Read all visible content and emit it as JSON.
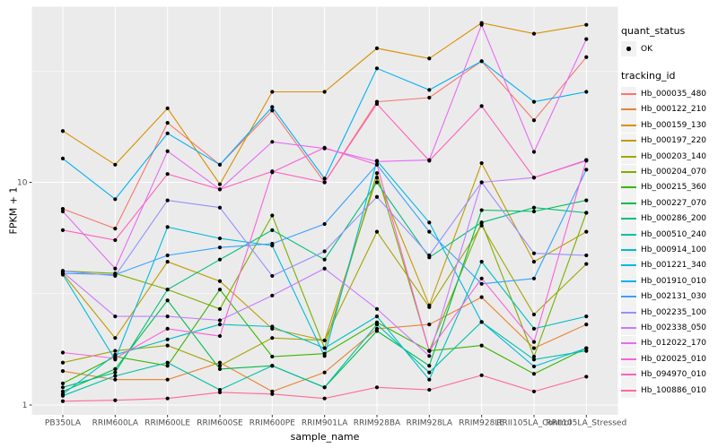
{
  "colors": {
    "figure_bg": "#FFFFFF",
    "panel_bg": "#EBEBEB",
    "grid": "#FFFFFF",
    "tick_mark": "#333333",
    "axis_text": "#4D4D4D",
    "point": "#000000",
    "legend_key_bg": "#F2F2F2"
  },
  "chart_data": {
    "type": "line",
    "title": "",
    "xlabel": "sample_name",
    "ylabel": "FPKM + 1",
    "yscale": "log10",
    "ylim": [
      0.9,
      61
    ],
    "grid": true,
    "legend_position": "right",
    "yticks": [
      {
        "label": "10",
        "value": 10
      },
      {
        "label": "1",
        "value": 1
      }
    ],
    "yminor": [
      31.623,
      3.1623
    ],
    "categories": [
      "PB350LA",
      "RRIM600LA",
      "RRIM600LE",
      "RRIM600SE",
      "RRIM600PE",
      "RRIM901LA",
      "RRIM928BA",
      "RRIM928LA",
      "RRIM928LE",
      "RRII105LA_Control",
      "RRII105LA_Stressed"
    ],
    "series": [
      {
        "name": "Hb_000035_480",
        "color": "#F8766D",
        "values": [
          7.6,
          6.2,
          18.5,
          12.0,
          21.0,
          10.0,
          23.0,
          24.0,
          35.0,
          19.0,
          36.5
        ]
      },
      {
        "name": "Hb_000122_210",
        "color": "#EA8331",
        "values": [
          1.42,
          1.3,
          1.3,
          1.55,
          1.15,
          1.4,
          2.2,
          2.3,
          3.05,
          1.8,
          2.3
        ]
      },
      {
        "name": "Hb_000159_130",
        "color": "#D89000",
        "values": [
          17.0,
          12.0,
          21.5,
          9.8,
          25.5,
          25.5,
          40.0,
          36.0,
          52.0,
          46.5,
          51.0
        ]
      },
      {
        "name": "Hb_000197_220",
        "color": "#C09B00",
        "values": [
          3.9,
          2.0,
          4.4,
          3.6,
          2.2,
          1.95,
          10.5,
          2.8,
          12.2,
          4.4,
          6.0
        ]
      },
      {
        "name": "Hb_000203_140",
        "color": "#A3A500",
        "values": [
          1.55,
          1.75,
          1.85,
          1.5,
          2.0,
          1.95,
          6.0,
          2.75,
          6.4,
          2.55,
          4.3
        ]
      },
      {
        "name": "Hb_000204_070",
        "color": "#7CAE00",
        "values": [
          4.0,
          3.9,
          3.3,
          2.7,
          7.1,
          1.8,
          11.0,
          1.75,
          6.6,
          1.65,
          7.3
        ]
      },
      {
        "name": "Hb_000215_360",
        "color": "#39B600",
        "values": [
          1.25,
          1.65,
          1.5,
          3.3,
          1.65,
          1.7,
          2.35,
          1.75,
          1.85,
          1.38,
          1.8
        ]
      },
      {
        "name": "Hb_000227_070",
        "color": "#00BB4E",
        "values": [
          1.15,
          1.45,
          2.95,
          1.45,
          1.5,
          1.2,
          2.15,
          1.5,
          7.5,
          7.4,
          8.3
        ]
      },
      {
        "name": "Hb_000286_200",
        "color": "#00BF7D",
        "values": [
          1.2,
          1.4,
          3.3,
          4.5,
          6.1,
          4.5,
          10.0,
          4.6,
          6.6,
          7.7,
          7.3
        ]
      },
      {
        "name": "Hb_000510_240",
        "color": "#00C1A3",
        "values": [
          1.1,
          1.35,
          1.55,
          1.17,
          1.5,
          1.2,
          2.3,
          1.4,
          2.36,
          1.6,
          1.75
        ]
      },
      {
        "name": "Hb_000914_100",
        "color": "#00BFC4",
        "values": [
          1.12,
          1.68,
          1.97,
          2.3,
          2.25,
          1.8,
          2.5,
          1.3,
          4.4,
          2.2,
          2.5
        ]
      },
      {
        "name": "Hb_001221_340",
        "color": "#00BAE0",
        "values": [
          3.85,
          1.6,
          6.3,
          5.6,
          5.2,
          1.66,
          12.5,
          6.6,
          2.36,
          1.49,
          1.8
        ]
      },
      {
        "name": "Hb_001910_010",
        "color": "#00B0F6",
        "values": [
          12.8,
          8.4,
          16.6,
          12.0,
          21.8,
          10.4,
          32.5,
          26.0,
          35.0,
          23.0,
          25.5
        ]
      },
      {
        "name": "Hb_002131_030",
        "color": "#35A2FF",
        "values": [
          3.9,
          3.85,
          4.7,
          5.1,
          5.3,
          6.5,
          12.0,
          6.0,
          3.5,
          3.7,
          11.4
        ]
      },
      {
        "name": "Hb_002235_100",
        "color": "#9590FF",
        "values": [
          4.0,
          3.8,
          8.3,
          7.7,
          3.8,
          4.9,
          8.6,
          4.7,
          10.0,
          4.8,
          4.7
        ]
      },
      {
        "name": "Hb_002338_050",
        "color": "#C77CFF",
        "values": [
          3.95,
          2.5,
          2.5,
          2.4,
          3.1,
          4.1,
          2.7,
          1.66,
          10.0,
          10.5,
          12.6
        ]
      },
      {
        "name": "Hb_012022_170",
        "color": "#E76BF3",
        "values": [
          7.4,
          4.1,
          13.8,
          9.3,
          15.2,
          14.2,
          12.4,
          12.6,
          51.0,
          13.7,
          44.0
        ]
      },
      {
        "name": "Hb_020025_010",
        "color": "#FA62DB",
        "values": [
          1.72,
          1.62,
          2.2,
          2.04,
          11.1,
          14.3,
          12.0,
          1.75,
          3.7,
          1.92,
          12.6
        ]
      },
      {
        "name": "Hb_094970_010",
        "color": "#FF62BC",
        "values": [
          6.1,
          5.5,
          10.9,
          9.3,
          11.2,
          10.0,
          22.5,
          12.5,
          22.0,
          10.5,
          12.5
        ]
      },
      {
        "name": "Hb_100886_010",
        "color": "#FF6A98",
        "values": [
          1.04,
          1.05,
          1.07,
          1.14,
          1.12,
          1.07,
          1.2,
          1.17,
          1.36,
          1.15,
          1.34
        ]
      }
    ],
    "legend": {
      "quant_status": {
        "title": "quant_status",
        "entries": [
          {
            "label": "OK",
            "symbol": "point"
          }
        ]
      },
      "tracking_id": {
        "title": "tracking_id"
      }
    }
  }
}
